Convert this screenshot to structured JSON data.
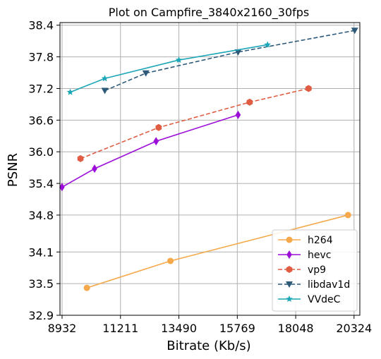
{
  "chart_data": {
    "type": "line",
    "title": "Plot on Campfire_3840x2160_30fps",
    "xlabel": "Bitrate (Kb/s)",
    "ylabel": "PSNR",
    "xlim": [
      8850,
      20550
    ],
    "ylim": [
      32.9,
      38.45
    ],
    "x_ticks": [
      8932,
      11211,
      13490,
      15769,
      18048,
      20324
    ],
    "x_tick_labels": [
      "8932",
      "11211",
      "13490",
      "15769",
      "18048",
      "20324"
    ],
    "y_ticks": [
      32.9,
      33.5,
      34.1,
      34.8,
      35.4,
      36.0,
      36.6,
      37.2,
      37.8,
      38.4
    ],
    "y_tick_labels": [
      "32.9",
      "33.5",
      "34.1",
      "34.8",
      "35.4",
      "36.0",
      "36.6",
      "37.2",
      "37.8",
      "38.4"
    ],
    "grid": true,
    "legend_position": "lower-right",
    "series": [
      {
        "name": "h264",
        "color": "#f5a94a",
        "marker": "circle",
        "dash": "solid",
        "x": [
          9900,
          13160,
          20090
        ],
        "y": [
          33.42,
          33.93,
          34.8
        ]
      },
      {
        "name": "hevc",
        "color": "#9b0fd8",
        "marker": "diamond",
        "dash": "solid",
        "x": [
          8930,
          10200,
          12600,
          15800
        ],
        "y": [
          35.33,
          35.68,
          36.2,
          36.7
        ]
      },
      {
        "name": "vp9",
        "color": "#e05d44",
        "marker": "hexagon",
        "dash": "dashed",
        "x": [
          9650,
          12700,
          16250,
          18550
        ],
        "y": [
          35.87,
          36.46,
          36.94,
          37.2
        ]
      },
      {
        "name": "libdav1d",
        "color": "#2e5a7a",
        "marker": "triangle-down",
        "dash": "dashed",
        "x": [
          10600,
          12200,
          15800,
          20350
        ],
        "y": [
          37.16,
          37.49,
          37.89,
          38.3
        ]
      },
      {
        "name": "VVdeC",
        "color": "#1aa6b7",
        "marker": "star",
        "dash": "solid",
        "x": [
          9250,
          10600,
          13490,
          16950
        ],
        "y": [
          37.13,
          37.39,
          37.74,
          38.03
        ]
      }
    ]
  }
}
